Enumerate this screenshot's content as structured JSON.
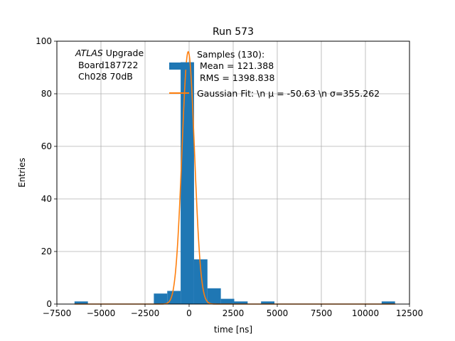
{
  "chart_data": {
    "type": "bar",
    "title": "Run 573",
    "xlabel": "time [ns]",
    "ylabel": "Entries",
    "xlim": [
      -7500,
      12500
    ],
    "ylim": [
      0,
      100
    ],
    "grid": true,
    "xticks": [
      -7500,
      -5000,
      -2500,
      0,
      2500,
      5000,
      7500,
      10000,
      12500
    ],
    "xtick_labels": [
      "−7500",
      "−5000",
      "−2500",
      "0",
      "2500",
      "5000",
      "7500",
      "10000",
      "12500"
    ],
    "yticks": [
      0,
      20,
      40,
      60,
      80,
      100
    ],
    "ytick_labels": [
      "0",
      "20",
      "40",
      "60",
      "80",
      "100"
    ],
    "annotation": {
      "atlas": "ATLAS",
      "upgrade": " Upgrade",
      "board": " Board187722",
      "channel": " Ch028 70dB"
    },
    "legend": {
      "placement": "top-right",
      "samples_line1": "Samples (130):",
      "samples_line2": " Mean = 121.388",
      "samples_line3": " RMS = 1398.838",
      "fit_label": "Gaussian Fit: \\n μ = -50.63 \\n σ=355.262"
    },
    "series": [
      {
        "name": "Samples (130):",
        "kind": "histogram",
        "color": "#1f77b4",
        "bin_width": 760,
        "bins": [
          {
            "x0": -6500,
            "count": 1
          },
          {
            "x0": -2000,
            "count": 4
          },
          {
            "x0": -1240,
            "count": 5
          },
          {
            "x0": -480,
            "count": 92
          },
          {
            "x0": 280,
            "count": 17
          },
          {
            "x0": 1040,
            "count": 6
          },
          {
            "x0": 1800,
            "count": 2
          },
          {
            "x0": 2560,
            "count": 1
          },
          {
            "x0": 4080,
            "count": 1
          },
          {
            "x0": 10920,
            "count": 1
          }
        ]
      },
      {
        "name": "Gaussian Fit",
        "kind": "line",
        "color": "#ff7f0e",
        "mu": -50.63,
        "sigma": 355.262,
        "amplitude": 96,
        "x_range": [
          -6500,
          11700
        ]
      }
    ]
  }
}
